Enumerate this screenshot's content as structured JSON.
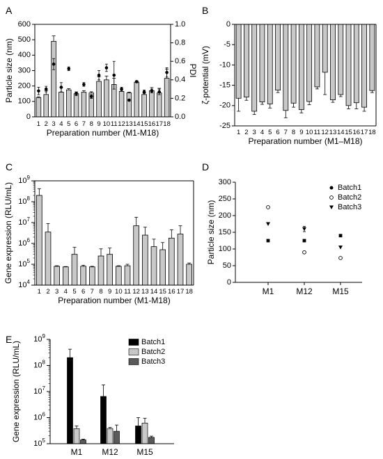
{
  "chart_data": [
    {
      "panel": "A",
      "type": "bar",
      "xlabel": "Preparation number (M1-M18)",
      "ylabel": "Particle size (nm)",
      "y2label": "PDI",
      "ylim": [
        0,
        600
      ],
      "y2lim": [
        0,
        1.0
      ],
      "yticks": [
        0,
        100,
        200,
        300,
        400,
        500,
        600
      ],
      "y2ticks": [
        "0.0",
        "0.2",
        "0.4",
        "0.6",
        "0.8",
        "1.0"
      ],
      "categories": [
        "1",
        "2",
        "3",
        "4",
        "5",
        "6",
        "7",
        "8",
        "9",
        "10",
        "11",
        "12",
        "13",
        "14",
        "15",
        "16",
        "17",
        "18"
      ],
      "bar_color": "#c8c8c8",
      "series": [
        {
          "kind": "bar",
          "values": [
            125,
            145,
            490,
            160,
            175,
            150,
            160,
            155,
            230,
            240,
            210,
            165,
            155,
            225,
            145,
            170,
            155,
            250
          ],
          "errors": [
            5,
            25,
            35,
            30,
            8,
            10,
            10,
            8,
            30,
            25,
            40,
            15,
            5,
            8,
            10,
            20,
            30,
            60
          ]
        },
        {
          "kind": "point",
          "axis": "right",
          "values": [
            0.28,
            0.3,
            0.57,
            0.32,
            0.52,
            0.25,
            0.35,
            0.22,
            0.45,
            0.53,
            0.45,
            0.3,
            0.18,
            0.38,
            0.27,
            0.28,
            0.27,
            0.48
          ],
          "errors": [
            0.04,
            0.03,
            0.06,
            0.05,
            0.02,
            0.02,
            0.02,
            0.02,
            0.05,
            0.04,
            0.15,
            0.02,
            0.01,
            0.01,
            0.02,
            0.02,
            0.03,
            0.05
          ]
        }
      ]
    },
    {
      "panel": "B",
      "type": "bar",
      "xlabel": "Preparation number (M1–M18)",
      "ylabel": "ζ-potential (mV)",
      "ylim": [
        -25,
        0
      ],
      "yticks": [
        0,
        -5,
        -10,
        -15,
        -20,
        -25
      ],
      "categories": [
        "1",
        "2",
        "3",
        "4",
        "5",
        "6",
        "7",
        "8",
        "9",
        "10",
        "11",
        "12",
        "13",
        "14",
        "15",
        "16",
        "17",
        "18"
      ],
      "bar_color": "#c8c8c8",
      "series": [
        {
          "kind": "bar",
          "values": [
            -18.2,
            -17.9,
            -21.4,
            -19.1,
            -19.6,
            -16.2,
            -21.2,
            -19.4,
            -21.0,
            -19.0,
            -15.4,
            -11.8,
            -18.6,
            -17.3,
            -20.0,
            -19.3,
            -20.4,
            -16.3
          ],
          "errors": [
            3.2,
            0.8,
            0.8,
            0.6,
            1.0,
            0.6,
            1.8,
            1.0,
            0.8,
            0.8,
            0.5,
            5.5,
            0.6,
            0.5,
            0.8,
            1.5,
            1.0,
            0.5
          ]
        }
      ]
    },
    {
      "panel": "C",
      "type": "bar",
      "log_y": true,
      "xlabel": "Preparation number (M1-M18)",
      "ylabel": "Gene expression (RLU/mL)",
      "ylim": [
        10000,
        1000000000
      ],
      "yticks": [
        {
          "base": "10",
          "exp": "4"
        },
        {
          "base": "10",
          "exp": "5"
        },
        {
          "base": "10",
          "exp": "6"
        },
        {
          "base": "10",
          "exp": "7"
        },
        {
          "base": "10",
          "exp": "8"
        },
        {
          "base": "10",
          "exp": "9"
        }
      ],
      "categories": [
        "1",
        "2",
        "3",
        "4",
        "5",
        "6",
        "7",
        "8",
        "9",
        "10",
        "11",
        "12",
        "13",
        "14",
        "15",
        "16",
        "17",
        "18"
      ],
      "bar_color": "#c8c8c8",
      "series": [
        {
          "kind": "bar",
          "values": [
            200000000,
            3500000,
            80000,
            75000,
            300000,
            80000,
            75000,
            250000,
            300000,
            80000,
            85000,
            7000000,
            2500000,
            700000,
            500000,
            1800000,
            2800000,
            100000
          ],
          "errors_upper": [
            420000000,
            9000000,
            85000,
            78000,
            650000,
            90000,
            80000,
            550000,
            600000,
            85000,
            100000,
            18000000,
            6000000,
            1600000,
            1100000,
            4500000,
            7000000,
            115000
          ]
        }
      ]
    },
    {
      "panel": "D",
      "type": "scatter",
      "ylabel": "Particle size (nm)",
      "ylim": [
        0,
        300
      ],
      "yticks": [
        0,
        50,
        100,
        150,
        200,
        250,
        300
      ],
      "categories": [
        "M1",
        "M12",
        "M15"
      ],
      "legend_position": "top-right",
      "series": [
        {
          "name": "Batch1",
          "marker": "filled-circle",
          "values": [
            125,
            125,
            140
          ]
        },
        {
          "name": "Batch2",
          "marker": "open-circle",
          "values": [
            225,
            90,
            73
          ]
        },
        {
          "name": "Batch3",
          "marker": "filled-triangle-down",
          "values": [
            175,
            160,
            105
          ]
        }
      ],
      "errors": [
        [
          0,
          0,
          0
        ],
        [
          0,
          0,
          0
        ],
        [
          0,
          8,
          0
        ]
      ]
    },
    {
      "panel": "E",
      "type": "bar",
      "log_y": true,
      "ylabel": "Gene expression (RLU/mL)",
      "ylim": [
        100000,
        1000000000
      ],
      "yticks": [
        {
          "base": "10",
          "exp": "5"
        },
        {
          "base": "10",
          "exp": "6"
        },
        {
          "base": "10",
          "exp": "7"
        },
        {
          "base": "10",
          "exp": "8"
        },
        {
          "base": "10",
          "exp": "9"
        }
      ],
      "categories": [
        "M1",
        "M12",
        "M15"
      ],
      "legend_position": "top-right",
      "series": [
        {
          "name": "Batch1",
          "color": "#000000",
          "values": [
            200000000,
            6500000,
            480000
          ],
          "errors_upper": [
            420000000,
            18000000,
            1000000
          ]
        },
        {
          "name": "Batch2",
          "color": "#c8c8c8",
          "values": [
            380000,
            380000,
            620000
          ],
          "errors_upper": [
            480000,
            420000,
            950000
          ]
        },
        {
          "name": "Batch3",
          "color": "#5a5a5a",
          "values": [
            140000,
            300000,
            175000
          ],
          "errors_upper": [
            150000,
            520000,
            195000
          ]
        }
      ]
    }
  ]
}
